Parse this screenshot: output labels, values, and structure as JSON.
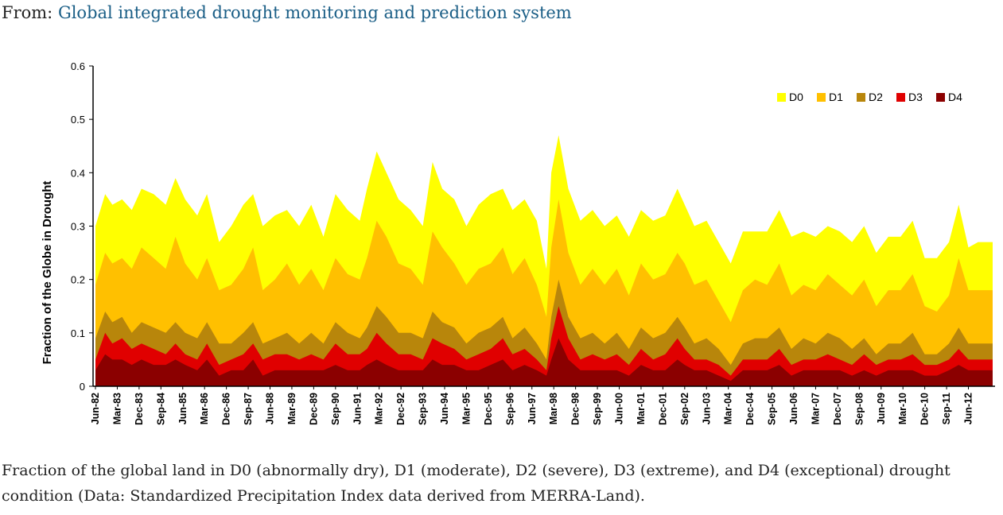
{
  "source": {
    "prefix": "From:",
    "link_text": "Global integrated drought monitoring and prediction system"
  },
  "caption": "Fraction of the global land in D0 (abnormally dry), D1 (moderate), D2 (severe), D3 (extreme), and D4 (exceptional) drought condition (Data: Standardized Precipitation Index data derived from MERRA-Land).",
  "chart_data": {
    "type": "area",
    "stacked": false,
    "title": "",
    "xlabel": "",
    "ylabel": "Fraction of the Globe in Drought",
    "ylim": [
      0,
      0.6
    ],
    "yticks": [
      "0",
      "0.1",
      "0.2",
      "0.3",
      "0.4",
      "0.5",
      "0.6"
    ],
    "grid": false,
    "legend_position": "top-right",
    "xlim": [
      "1982-06",
      "2013-04"
    ],
    "x_tick_labels": [
      "Jun-82",
      "Mar-83",
      "Dec-83",
      "Sep-84",
      "Jun-85",
      "Mar-86",
      "Dec-86",
      "Sep-87",
      "Jun-88",
      "Mar-89",
      "Dec-89",
      "Sep-90",
      "Jun-91",
      "Mar-92",
      "Dec-92",
      "Sep-93",
      "Jun-94",
      "Mar-95",
      "Dec-95",
      "Sep-96",
      "Jun-97",
      "Mar-98",
      "Dec-98",
      "Sep-99",
      "Jun-00",
      "Mar-01",
      "Dec-01",
      "Sep-02",
      "Jun-03",
      "Mar-04",
      "Dec-04",
      "Sep-05",
      "Jun-06",
      "Mar-07",
      "Dec-07",
      "Sep-08",
      "Jun-09",
      "Mar-10",
      "Dec-10",
      "Sep-11",
      "Jun-12"
    ],
    "series": [
      {
        "name": "D0",
        "color": "#ffff00",
        "x": [
          "1982-06",
          "1982-10",
          "1983-01",
          "1983-05",
          "1983-09",
          "1984-01",
          "1984-06",
          "1984-11",
          "1985-03",
          "1985-07",
          "1985-12",
          "1986-04",
          "1986-09",
          "1987-02",
          "1987-07",
          "1987-11",
          "1988-03",
          "1988-08",
          "1989-01",
          "1989-06",
          "1989-11",
          "1990-04",
          "1990-09",
          "1991-02",
          "1991-07",
          "1991-10",
          "1992-02",
          "1992-06",
          "1992-11",
          "1993-04",
          "1993-09",
          "1994-01",
          "1994-05",
          "1994-10",
          "1995-03",
          "1995-08",
          "1996-01",
          "1996-06",
          "1996-10",
          "1997-03",
          "1997-08",
          "1997-12",
          "1998-02",
          "1998-05",
          "1998-09",
          "1999-02",
          "1999-07",
          "1999-12",
          "2000-05",
          "2000-10",
          "2001-03",
          "2001-08",
          "2002-01",
          "2002-06",
          "2002-09",
          "2003-01",
          "2003-06",
          "2003-11",
          "2004-04",
          "2004-09",
          "2005-02",
          "2005-07",
          "2005-12",
          "2006-05",
          "2006-10",
          "2007-03",
          "2007-08",
          "2008-01",
          "2008-06",
          "2008-11",
          "2009-04",
          "2009-09",
          "2010-02",
          "2010-07",
          "2010-12",
          "2011-05",
          "2011-10",
          "2012-02",
          "2012-06",
          "2012-10",
          "2013-04"
        ],
        "values": [
          0.3,
          0.36,
          0.34,
          0.35,
          0.33,
          0.37,
          0.36,
          0.34,
          0.39,
          0.35,
          0.32,
          0.36,
          0.27,
          0.3,
          0.34,
          0.36,
          0.3,
          0.32,
          0.33,
          0.3,
          0.34,
          0.28,
          0.36,
          0.33,
          0.31,
          0.37,
          0.44,
          0.4,
          0.35,
          0.33,
          0.3,
          0.42,
          0.37,
          0.35,
          0.3,
          0.34,
          0.36,
          0.37,
          0.33,
          0.35,
          0.31,
          0.22,
          0.4,
          0.47,
          0.37,
          0.31,
          0.33,
          0.3,
          0.32,
          0.28,
          0.33,
          0.31,
          0.32,
          0.37,
          0.34,
          0.3,
          0.31,
          0.27,
          0.23,
          0.29,
          0.29,
          0.29,
          0.33,
          0.28,
          0.29,
          0.28,
          0.3,
          0.29,
          0.27,
          0.3,
          0.25,
          0.28,
          0.28,
          0.31,
          0.24,
          0.24,
          0.27,
          0.34,
          0.26,
          0.27,
          0.27
        ]
      },
      {
        "name": "D1",
        "color": "#ffc000",
        "x": [
          "1982-06",
          "1982-10",
          "1983-01",
          "1983-05",
          "1983-09",
          "1984-01",
          "1984-06",
          "1984-11",
          "1985-03",
          "1985-07",
          "1985-12",
          "1986-04",
          "1986-09",
          "1987-02",
          "1987-07",
          "1987-11",
          "1988-03",
          "1988-08",
          "1989-01",
          "1989-06",
          "1989-11",
          "1990-04",
          "1990-09",
          "1991-02",
          "1991-07",
          "1991-10",
          "1992-02",
          "1992-06",
          "1992-11",
          "1993-04",
          "1993-09",
          "1994-01",
          "1994-05",
          "1994-10",
          "1995-03",
          "1995-08",
          "1996-01",
          "1996-06",
          "1996-10",
          "1997-03",
          "1997-08",
          "1997-12",
          "1998-02",
          "1998-05",
          "1998-09",
          "1999-02",
          "1999-07",
          "1999-12",
          "2000-05",
          "2000-10",
          "2001-03",
          "2001-08",
          "2002-01",
          "2002-06",
          "2002-09",
          "2003-01",
          "2003-06",
          "2003-11",
          "2004-04",
          "2004-09",
          "2005-02",
          "2005-07",
          "2005-12",
          "2006-05",
          "2006-10",
          "2007-03",
          "2007-08",
          "2008-01",
          "2008-06",
          "2008-11",
          "2009-04",
          "2009-09",
          "2010-02",
          "2010-07",
          "2010-12",
          "2011-05",
          "2011-10",
          "2012-02",
          "2012-06",
          "2012-10",
          "2013-04"
        ],
        "values": [
          0.19,
          0.25,
          0.23,
          0.24,
          0.22,
          0.26,
          0.24,
          0.22,
          0.28,
          0.23,
          0.2,
          0.24,
          0.18,
          0.19,
          0.22,
          0.26,
          0.18,
          0.2,
          0.23,
          0.19,
          0.22,
          0.18,
          0.24,
          0.21,
          0.2,
          0.24,
          0.31,
          0.28,
          0.23,
          0.22,
          0.19,
          0.29,
          0.26,
          0.23,
          0.19,
          0.22,
          0.23,
          0.26,
          0.21,
          0.24,
          0.19,
          0.13,
          0.26,
          0.35,
          0.25,
          0.19,
          0.22,
          0.19,
          0.22,
          0.17,
          0.23,
          0.2,
          0.21,
          0.25,
          0.23,
          0.19,
          0.2,
          0.16,
          0.12,
          0.18,
          0.2,
          0.19,
          0.23,
          0.17,
          0.19,
          0.18,
          0.21,
          0.19,
          0.17,
          0.2,
          0.15,
          0.18,
          0.18,
          0.21,
          0.15,
          0.14,
          0.17,
          0.24,
          0.18,
          0.18,
          0.18
        ]
      },
      {
        "name": "D2",
        "color": "#b8860b",
        "x": [
          "1982-06",
          "1982-10",
          "1983-01",
          "1983-05",
          "1983-09",
          "1984-01",
          "1984-06",
          "1984-11",
          "1985-03",
          "1985-07",
          "1985-12",
          "1986-04",
          "1986-09",
          "1987-02",
          "1987-07",
          "1987-11",
          "1988-03",
          "1988-08",
          "1989-01",
          "1989-06",
          "1989-11",
          "1990-04",
          "1990-09",
          "1991-02",
          "1991-07",
          "1991-10",
          "1992-02",
          "1992-06",
          "1992-11",
          "1993-04",
          "1993-09",
          "1994-01",
          "1994-05",
          "1994-10",
          "1995-03",
          "1995-08",
          "1996-01",
          "1996-06",
          "1996-10",
          "1997-03",
          "1997-08",
          "1997-12",
          "1998-02",
          "1998-05",
          "1998-09",
          "1999-02",
          "1999-07",
          "1999-12",
          "2000-05",
          "2000-10",
          "2001-03",
          "2001-08",
          "2002-01",
          "2002-06",
          "2002-09",
          "2003-01",
          "2003-06",
          "2003-11",
          "2004-04",
          "2004-09",
          "2005-02",
          "2005-07",
          "2005-12",
          "2006-05",
          "2006-10",
          "2007-03",
          "2007-08",
          "2008-01",
          "2008-06",
          "2008-11",
          "2009-04",
          "2009-09",
          "2010-02",
          "2010-07",
          "2010-12",
          "2011-05",
          "2011-10",
          "2012-02",
          "2012-06",
          "2012-10",
          "2013-04"
        ],
        "values": [
          0.09,
          0.14,
          0.12,
          0.13,
          0.1,
          0.12,
          0.11,
          0.1,
          0.12,
          0.1,
          0.09,
          0.12,
          0.08,
          0.08,
          0.1,
          0.12,
          0.08,
          0.09,
          0.1,
          0.08,
          0.1,
          0.08,
          0.12,
          0.1,
          0.09,
          0.11,
          0.15,
          0.13,
          0.1,
          0.1,
          0.09,
          0.14,
          0.12,
          0.11,
          0.08,
          0.1,
          0.11,
          0.13,
          0.09,
          0.11,
          0.08,
          0.05,
          0.13,
          0.2,
          0.13,
          0.09,
          0.1,
          0.08,
          0.1,
          0.07,
          0.11,
          0.09,
          0.1,
          0.13,
          0.11,
          0.08,
          0.09,
          0.07,
          0.04,
          0.08,
          0.09,
          0.09,
          0.11,
          0.07,
          0.09,
          0.08,
          0.1,
          0.09,
          0.07,
          0.09,
          0.06,
          0.08,
          0.08,
          0.1,
          0.06,
          0.06,
          0.08,
          0.11,
          0.08,
          0.08,
          0.08
        ]
      },
      {
        "name": "D3",
        "color": "#e00000",
        "x": [
          "1982-06",
          "1982-10",
          "1983-01",
          "1983-05",
          "1983-09",
          "1984-01",
          "1984-06",
          "1984-11",
          "1985-03",
          "1985-07",
          "1985-12",
          "1986-04",
          "1986-09",
          "1987-02",
          "1987-07",
          "1987-11",
          "1988-03",
          "1988-08",
          "1989-01",
          "1989-06",
          "1989-11",
          "1990-04",
          "1990-09",
          "1991-02",
          "1991-07",
          "1991-10",
          "1992-02",
          "1992-06",
          "1992-11",
          "1993-04",
          "1993-09",
          "1994-01",
          "1994-05",
          "1994-10",
          "1995-03",
          "1995-08",
          "1996-01",
          "1996-06",
          "1996-10",
          "1997-03",
          "1997-08",
          "1997-12",
          "1998-02",
          "1998-05",
          "1998-09",
          "1999-02",
          "1999-07",
          "1999-12",
          "2000-05",
          "2000-10",
          "2001-03",
          "2001-08",
          "2002-01",
          "2002-06",
          "2002-09",
          "2003-01",
          "2003-06",
          "2003-11",
          "2004-04",
          "2004-09",
          "2005-02",
          "2005-07",
          "2005-12",
          "2006-05",
          "2006-10",
          "2007-03",
          "2007-08",
          "2008-01",
          "2008-06",
          "2008-11",
          "2009-04",
          "2009-09",
          "2010-02",
          "2010-07",
          "2010-12",
          "2011-05",
          "2011-10",
          "2012-02",
          "2012-06",
          "2012-10",
          "2013-04"
        ],
        "values": [
          0.05,
          0.1,
          0.08,
          0.09,
          0.07,
          0.08,
          0.07,
          0.06,
          0.08,
          0.06,
          0.05,
          0.08,
          0.04,
          0.05,
          0.06,
          0.08,
          0.05,
          0.06,
          0.06,
          0.05,
          0.06,
          0.05,
          0.08,
          0.06,
          0.06,
          0.07,
          0.1,
          0.08,
          0.06,
          0.06,
          0.05,
          0.09,
          0.08,
          0.07,
          0.05,
          0.06,
          0.07,
          0.09,
          0.06,
          0.07,
          0.05,
          0.03,
          0.09,
          0.15,
          0.09,
          0.05,
          0.06,
          0.05,
          0.06,
          0.04,
          0.07,
          0.05,
          0.06,
          0.09,
          0.07,
          0.05,
          0.05,
          0.04,
          0.02,
          0.05,
          0.05,
          0.05,
          0.07,
          0.04,
          0.05,
          0.05,
          0.06,
          0.05,
          0.04,
          0.06,
          0.04,
          0.05,
          0.05,
          0.06,
          0.04,
          0.04,
          0.05,
          0.07,
          0.05,
          0.05,
          0.05
        ]
      },
      {
        "name": "D4",
        "color": "#8b0000",
        "x": [
          "1982-06",
          "1982-10",
          "1983-01",
          "1983-05",
          "1983-09",
          "1984-01",
          "1984-06",
          "1984-11",
          "1985-03",
          "1985-07",
          "1985-12",
          "1986-04",
          "1986-09",
          "1987-02",
          "1987-07",
          "1987-11",
          "1988-03",
          "1988-08",
          "1989-01",
          "1989-06",
          "1989-11",
          "1990-04",
          "1990-09",
          "1991-02",
          "1991-07",
          "1991-10",
          "1992-02",
          "1992-06",
          "1992-11",
          "1993-04",
          "1993-09",
          "1994-01",
          "1994-05",
          "1994-10",
          "1995-03",
          "1995-08",
          "1996-01",
          "1996-06",
          "1996-10",
          "1997-03",
          "1997-08",
          "1997-12",
          "1998-02",
          "1998-05",
          "1998-09",
          "1999-02",
          "1999-07",
          "1999-12",
          "2000-05",
          "2000-10",
          "2001-03",
          "2001-08",
          "2002-01",
          "2002-06",
          "2002-09",
          "2003-01",
          "2003-06",
          "2003-11",
          "2004-04",
          "2004-09",
          "2005-02",
          "2005-07",
          "2005-12",
          "2006-05",
          "2006-10",
          "2007-03",
          "2007-08",
          "2008-01",
          "2008-06",
          "2008-11",
          "2009-04",
          "2009-09",
          "2010-02",
          "2010-07",
          "2010-12",
          "2011-05",
          "2011-10",
          "2012-02",
          "2012-06",
          "2012-10",
          "2013-04"
        ],
        "values": [
          0.03,
          0.06,
          0.05,
          0.05,
          0.04,
          0.05,
          0.04,
          0.04,
          0.05,
          0.04,
          0.03,
          0.05,
          0.02,
          0.03,
          0.03,
          0.05,
          0.02,
          0.03,
          0.03,
          0.03,
          0.03,
          0.03,
          0.04,
          0.03,
          0.03,
          0.04,
          0.05,
          0.04,
          0.03,
          0.03,
          0.03,
          0.05,
          0.04,
          0.04,
          0.03,
          0.03,
          0.04,
          0.05,
          0.03,
          0.04,
          0.03,
          0.02,
          0.05,
          0.09,
          0.05,
          0.03,
          0.03,
          0.03,
          0.03,
          0.02,
          0.04,
          0.03,
          0.03,
          0.05,
          0.04,
          0.03,
          0.03,
          0.02,
          0.01,
          0.03,
          0.03,
          0.03,
          0.04,
          0.02,
          0.03,
          0.03,
          0.03,
          0.03,
          0.02,
          0.03,
          0.02,
          0.03,
          0.03,
          0.03,
          0.02,
          0.02,
          0.03,
          0.04,
          0.03,
          0.03,
          0.03
        ]
      }
    ]
  }
}
